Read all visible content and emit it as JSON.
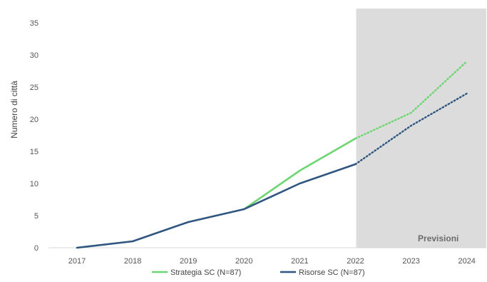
{
  "chart_data": {
    "type": "line",
    "title": "",
    "xlabel": "",
    "ylabel": "Numero di città",
    "x": [
      "2017",
      "2018",
      "2019",
      "2020",
      "2021",
      "2022",
      "2023",
      "2024"
    ],
    "ylim": [
      0,
      35
    ],
    "yticks": [
      0,
      5,
      10,
      15,
      20,
      25,
      30,
      35
    ],
    "grid": false,
    "legend_position": "bottom",
    "forecast": {
      "label": "Previsioni",
      "start": "2022",
      "end": "2024",
      "shade_color": "#dcdcdc",
      "line_style": "dotted"
    },
    "series": [
      {
        "name": "Strategia SC (N=87)",
        "color": "#6dd672",
        "values": [
          null,
          null,
          null,
          6,
          12,
          17,
          21,
          29
        ]
      },
      {
        "name": "Risorse SC (N=87)",
        "color": "#2e5680",
        "values": [
          0,
          1,
          4,
          6,
          10,
          13,
          19,
          24
        ]
      }
    ]
  }
}
